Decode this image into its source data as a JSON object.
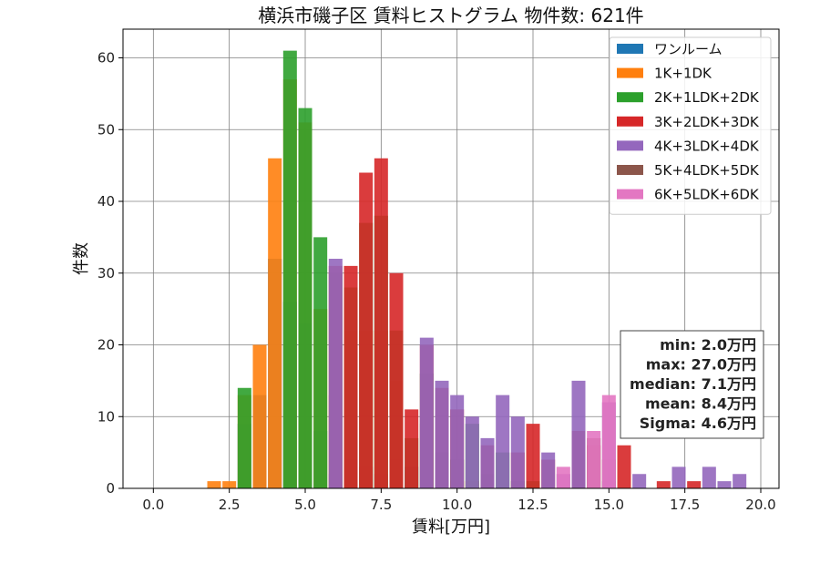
{
  "chart_data": {
    "type": "bar",
    "stacked": true,
    "title": "横浜市磯子区 賃料ヒストグラム 物件数: 621件",
    "xlabel": "賃料[万円]",
    "ylabel": "件数",
    "xlim": [
      -1.0,
      20.6
    ],
    "ylim": [
      0,
      64
    ],
    "xticks": [
      "0.0",
      "2.5",
      "5.0",
      "7.5",
      "10.0",
      "12.5",
      "15.0",
      "17.5",
      "20.0"
    ],
    "xtick_values": [
      0,
      2.5,
      5,
      7.5,
      10,
      12.5,
      15,
      17.5,
      20
    ],
    "yticks": [
      0,
      10,
      20,
      30,
      40,
      50,
      60
    ],
    "grid": true,
    "legend_position": "top-right",
    "bin_width": 0.5,
    "series": [
      {
        "name": "ワンルーム",
        "color": "#1f77b4",
        "x": [
          3.0,
          3.5,
          4.0,
          4.5,
          5.0,
          5.5,
          6.0,
          6.5,
          7.0,
          7.5,
          8.0,
          8.5
        ],
        "top": [
          9,
          13,
          32,
          26,
          23,
          8,
          2,
          4,
          3,
          2,
          4,
          3
        ]
      },
      {
        "name": "1K+1DK",
        "color": "#ff7f0e",
        "x": [
          2.0,
          2.5,
          3.0,
          3.5,
          4.0,
          4.5,
          5.0,
          5.5,
          6.0,
          6.5,
          7.0,
          7.5,
          8.0,
          9.0,
          9.5,
          10.0,
          10.5
        ],
        "top": [
          1,
          1,
          13,
          20,
          46,
          57,
          51,
          25,
          13,
          22,
          22,
          22,
          15,
          9,
          2,
          1,
          1
        ]
      },
      {
        "name": "2K+1LDK+2DK",
        "color": "#2ca02c",
        "x": [
          3.0,
          4.5,
          5.0,
          5.5,
          6.0,
          6.5,
          7.0,
          7.5,
          8.0,
          8.5,
          9.0,
          9.5,
          10.0,
          10.5,
          11.0,
          11.5,
          12.0,
          12.5,
          15.0
        ],
        "top": [
          14,
          61,
          53,
          35,
          30,
          28,
          37,
          38,
          22,
          7,
          16,
          5,
          4,
          9,
          2,
          5,
          1,
          1,
          1
        ]
      },
      {
        "name": "3K+2LDK+3DK",
        "color": "#d62728",
        "x": [
          6.0,
          6.5,
          7.0,
          7.5,
          8.0,
          8.5,
          9.0,
          9.5,
          10.0,
          11.0,
          12.0,
          12.5,
          13.0,
          14.0,
          14.5,
          15.0,
          15.5,
          16.8,
          17.8
        ],
        "top": [
          31,
          31,
          44,
          46,
          30,
          11,
          20,
          14,
          11,
          6,
          5,
          9,
          4,
          8,
          6,
          4,
          6,
          1,
          1
        ]
      },
      {
        "name": "4K+3LDK+4DK",
        "color": "#9467bd",
        "x": [
          6.0,
          9.0,
          9.5,
          10.0,
          10.5,
          11.0,
          11.5,
          12.0,
          13.0,
          13.5,
          14.0,
          15.0,
          16.0,
          17.3,
          18.3,
          18.8,
          19.3
        ],
        "top": [
          32,
          21,
          15,
          13,
          10,
          7,
          13,
          10,
          5,
          2,
          15,
          12,
          2,
          3,
          3,
          1,
          2
        ]
      },
      {
        "name": "5K+4LDK+5DK",
        "color": "#8c564b",
        "x": [
          14.5
        ],
        "top": [
          7
        ]
      },
      {
        "name": "6K+5LDK+6DK",
        "color": "#e377c2",
        "x": [
          13.5,
          14.5,
          15.0
        ],
        "top": [
          3,
          8,
          13
        ]
      }
    ],
    "stats": [
      "min: 2.0万円",
      "max: 27.0万円",
      "median: 7.1万円",
      "mean: 8.4万円",
      "Sigma: 4.6万円"
    ]
  }
}
